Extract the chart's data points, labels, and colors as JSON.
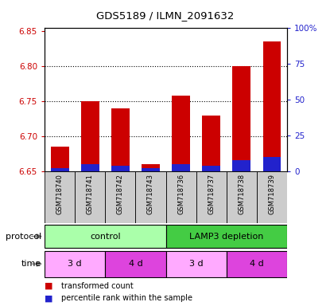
{
  "title": "GDS5189 / ILMN_2091632",
  "samples": [
    "GSM718740",
    "GSM718741",
    "GSM718742",
    "GSM718743",
    "GSM718736",
    "GSM718737",
    "GSM718738",
    "GSM718739"
  ],
  "red_values": [
    6.685,
    6.75,
    6.74,
    6.66,
    6.758,
    6.73,
    6.8,
    6.835
  ],
  "blue_pct": [
    2,
    5,
    4,
    2,
    5,
    4,
    8,
    10
  ],
  "ymin": 6.65,
  "ymax": 6.855,
  "yticks": [
    6.65,
    6.7,
    6.75,
    6.8,
    6.85
  ],
  "right_yticks": [
    0,
    25,
    50,
    75,
    100
  ],
  "right_ylabels": [
    "0",
    "25",
    "50",
    "75",
    "100%"
  ],
  "bar_color_red": "#cc0000",
  "bar_color_blue": "#2222cc",
  "left_tick_color": "#cc0000",
  "right_tick_color": "#2222cc",
  "protocol_control_color": "#aaffaa",
  "protocol_lamp3_color": "#44cc44",
  "time_3d_color": "#ffaaff",
  "time_4d_color": "#dd44dd",
  "protocol_labels": [
    "control",
    "LAMP3 depletion"
  ],
  "time_labels": [
    "3 d",
    "4 d",
    "3 d",
    "4 d"
  ],
  "legend_red_label": "transformed count",
  "legend_blue_label": "percentile rank within the sample",
  "bar_bottom": 6.65,
  "label_color": "black",
  "gray_box_color": "#cccccc"
}
